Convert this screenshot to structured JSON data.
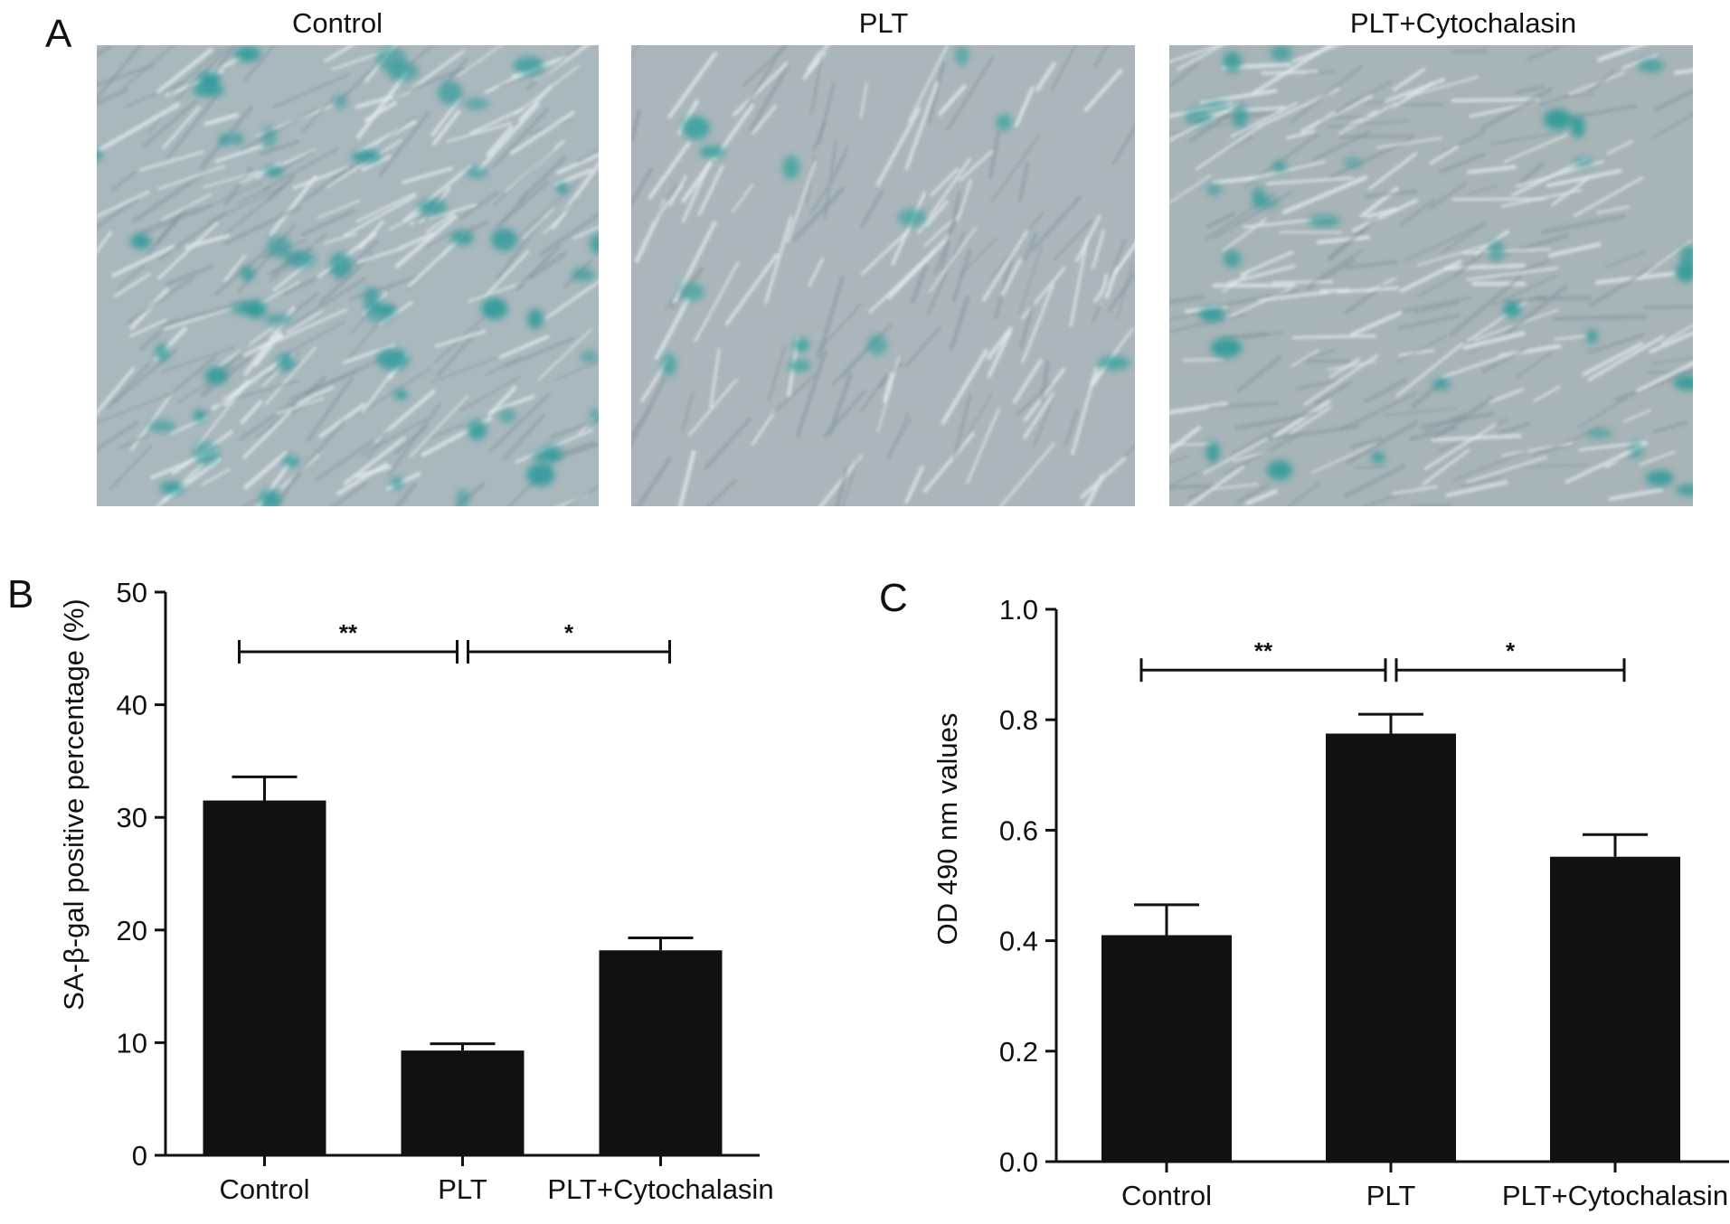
{
  "panels": {
    "a": {
      "letter": "A",
      "images": [
        {
          "title": "Control",
          "stain": "sparse-dense",
          "bg": "#a9b8bd",
          "dot_color": "#2f9a9a"
        },
        {
          "title": "PLT",
          "stain": "few",
          "bg": "#aab6bb",
          "dot_color": "#3aa39e"
        },
        {
          "title": "PLT+Cytochalasin",
          "stain": "moderate",
          "bg": "#a7b4b8",
          "dot_color": "#2f9b98"
        }
      ]
    },
    "b": {
      "letter": "B",
      "chart_data": {
        "type": "bar",
        "categories": [
          "Control",
          "PLT",
          "PLT+Cytochalasin"
        ],
        "values": [
          31.5,
          9.3,
          18.2
        ],
        "errors": [
          2.1,
          0.6,
          1.1
        ],
        "ylabel": "SA-β-gal positive percentage (%)",
        "xlabel": "",
        "ylim": [
          0,
          50
        ],
        "yticks": [
          "0",
          "10",
          "20",
          "30",
          "40",
          "50"
        ],
        "bar_color": "#111111",
        "significance": [
          {
            "from": 0,
            "to": 1,
            "label": "**",
            "y": 44.7
          },
          {
            "from": 1,
            "to": 2,
            "label": "*",
            "y": 44.7
          }
        ]
      }
    },
    "c": {
      "letter": "C",
      "chart_data": {
        "type": "bar",
        "categories": [
          "Control",
          "PLT",
          "PLT+Cytochalasin"
        ],
        "values": [
          0.41,
          0.775,
          0.552
        ],
        "errors": [
          0.055,
          0.035,
          0.04
        ],
        "ylabel": "OD 490 nm values",
        "xlabel": "",
        "ylim": [
          0,
          1.0
        ],
        "yticks": [
          "0.0",
          "0.2",
          "0.4",
          "0.6",
          "0.8",
          "1.0"
        ],
        "bar_color": "#111111",
        "significance": [
          {
            "from": 0,
            "to": 1,
            "label": "**",
            "y": 0.89
          },
          {
            "from": 1,
            "to": 2,
            "label": "*",
            "y": 0.89
          }
        ]
      }
    }
  }
}
